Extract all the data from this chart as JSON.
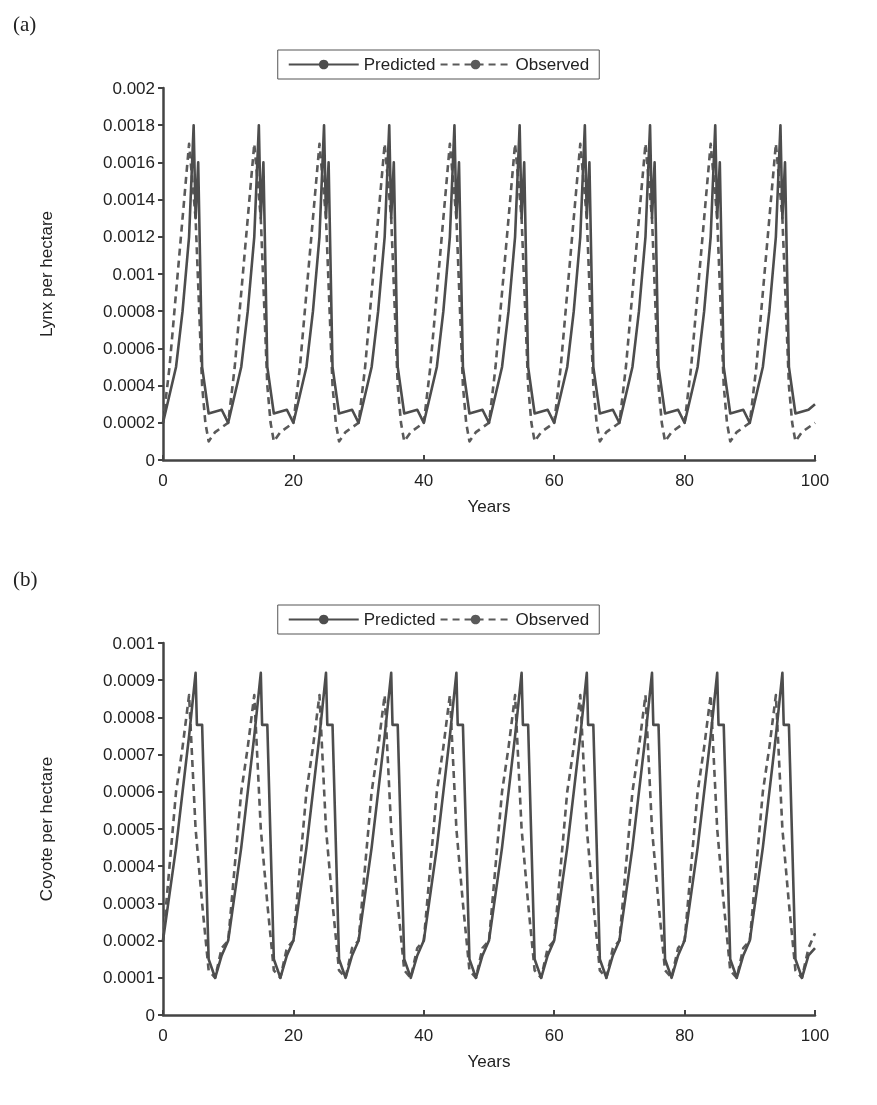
{
  "chart_data": [
    {
      "type": "line",
      "title": "(a)",
      "xlabel": "Years",
      "ylabel": "Lynx per hectare",
      "xlim": [
        0,
        100
      ],
      "xticks": [
        0,
        20,
        40,
        60,
        80,
        100
      ],
      "ylim": [
        0,
        0.002
      ],
      "yticks": [
        0,
        0.0002,
        0.0004,
        0.0006,
        0.0008,
        0.001,
        0.0012,
        0.0014,
        0.0016,
        0.0018,
        0.002
      ],
      "legend": "top",
      "grid": false,
      "marker": "none",
      "series": [
        {
          "name": "Predicted",
          "color": "#4d4d4d",
          "line_style": "solid",
          "x": [
            0,
            2,
            3,
            4,
            4.7,
            5,
            5.4,
            6,
            7,
            9,
            10,
            12,
            13,
            14,
            14.7,
            15,
            15.4,
            16,
            17,
            19,
            20,
            22,
            23,
            24,
            24.7,
            25,
            25.4,
            26,
            27,
            29,
            30,
            32,
            33,
            34,
            34.7,
            35,
            35.4,
            36,
            37,
            39,
            40,
            42,
            43,
            44,
            44.7,
            45,
            45.4,
            46,
            47,
            49,
            50,
            52,
            53,
            54,
            54.7,
            55,
            55.4,
            56,
            57,
            59,
            60,
            62,
            63,
            64,
            64.7,
            65,
            65.4,
            66,
            67,
            69,
            70,
            72,
            73,
            74,
            74.7,
            75,
            75.4,
            76,
            77,
            79,
            80,
            82,
            83,
            84,
            84.7,
            85,
            85.4,
            86,
            87,
            89,
            90,
            92,
            93,
            94,
            94.7,
            95,
            95.4,
            96,
            97,
            99,
            100
          ],
          "values": [
            0.0002,
            0.0005,
            0.0008,
            0.0012,
            0.0018,
            0.0013,
            0.0016,
            0.0005,
            0.00025,
            0.00027,
            0.0002,
            0.0005,
            0.0008,
            0.0012,
            0.0018,
            0.0013,
            0.0016,
            0.0005,
            0.00025,
            0.00027,
            0.0002,
            0.0005,
            0.0008,
            0.0012,
            0.0018,
            0.0013,
            0.0016,
            0.0005,
            0.00025,
            0.00027,
            0.0002,
            0.0005,
            0.0008,
            0.0012,
            0.0018,
            0.0013,
            0.0016,
            0.0005,
            0.00025,
            0.00027,
            0.0002,
            0.0005,
            0.0008,
            0.0012,
            0.0018,
            0.0013,
            0.0016,
            0.0005,
            0.00025,
            0.00027,
            0.0002,
            0.0005,
            0.0008,
            0.0012,
            0.0018,
            0.0013,
            0.0016,
            0.0005,
            0.00025,
            0.00027,
            0.0002,
            0.0005,
            0.0008,
            0.0012,
            0.0018,
            0.0013,
            0.0016,
            0.0005,
            0.00025,
            0.00027,
            0.0002,
            0.0005,
            0.0008,
            0.0012,
            0.0018,
            0.0013,
            0.0016,
            0.0005,
            0.00025,
            0.00027,
            0.0002,
            0.0005,
            0.0008,
            0.0012,
            0.0018,
            0.0013,
            0.0016,
            0.0005,
            0.00025,
            0.00027,
            0.0002,
            0.0005,
            0.0008,
            0.0012,
            0.0018,
            0.0013,
            0.0016,
            0.0005,
            0.00025,
            0.00027,
            0.0003
          ]
        },
        {
          "name": "Observed",
          "color": "#5a5a5a",
          "line_style": "dashed",
          "x": [
            0,
            1,
            2,
            3,
            4,
            5,
            6,
            6.5,
            7,
            8,
            10,
            11,
            12,
            13,
            14,
            15,
            16,
            16.5,
            17,
            18,
            20,
            21,
            22,
            23,
            24,
            25,
            26,
            26.5,
            27,
            28,
            30,
            31,
            32,
            33,
            34,
            35,
            36,
            36.5,
            37,
            38,
            40,
            41,
            42,
            43,
            44,
            45,
            46,
            46.5,
            47,
            48,
            50,
            51,
            52,
            53,
            54,
            55,
            56,
            56.5,
            57,
            58,
            60,
            61,
            62,
            63,
            64,
            65,
            66,
            66.5,
            67,
            68,
            70,
            71,
            72,
            73,
            74,
            75,
            76,
            76.5,
            77,
            78,
            80,
            81,
            82,
            83,
            84,
            85,
            86,
            86.5,
            87,
            88,
            90,
            91,
            92,
            93,
            94,
            95,
            96,
            96.5,
            97,
            98,
            100
          ],
          "values": [
            0.0002,
            0.0005,
            0.0009,
            0.0013,
            0.0017,
            0.0013,
            0.0004,
            0.0002,
            0.0001,
            0.00015,
            0.0002,
            0.0005,
            0.0009,
            0.0013,
            0.0017,
            0.0013,
            0.0004,
            0.0002,
            0.0001,
            0.00015,
            0.0002,
            0.0005,
            0.0009,
            0.0013,
            0.0017,
            0.0013,
            0.0004,
            0.0002,
            0.0001,
            0.00015,
            0.0002,
            0.0005,
            0.0009,
            0.0013,
            0.0017,
            0.0013,
            0.0004,
            0.0002,
            0.0001,
            0.00015,
            0.0002,
            0.0005,
            0.0009,
            0.0013,
            0.0017,
            0.0013,
            0.0004,
            0.0002,
            0.0001,
            0.00015,
            0.0002,
            0.0005,
            0.0009,
            0.0013,
            0.0017,
            0.0013,
            0.0004,
            0.0002,
            0.0001,
            0.00015,
            0.0002,
            0.0005,
            0.0009,
            0.0013,
            0.0017,
            0.0013,
            0.0004,
            0.0002,
            0.0001,
            0.00015,
            0.0002,
            0.0005,
            0.0009,
            0.0013,
            0.0017,
            0.0013,
            0.0004,
            0.0002,
            0.0001,
            0.00015,
            0.0002,
            0.0005,
            0.0009,
            0.0013,
            0.0017,
            0.0013,
            0.0004,
            0.0002,
            0.0001,
            0.00015,
            0.0002,
            0.0005,
            0.0009,
            0.0013,
            0.0017,
            0.0013,
            0.0004,
            0.0002,
            0.0001,
            0.00015,
            0.0002
          ]
        }
      ]
    },
    {
      "type": "line",
      "title": "(b)",
      "xlabel": "Years",
      "ylabel": "Coyote per hectare",
      "xlim": [
        0,
        100
      ],
      "xticks": [
        0,
        20,
        40,
        60,
        80,
        100
      ],
      "ylim": [
        0,
        0.001
      ],
      "yticks": [
        0,
        0.0001,
        0.0002,
        0.0003,
        0.0004,
        0.0005,
        0.0006,
        0.0007,
        0.0008,
        0.0009,
        0.001
      ],
      "legend": "top",
      "grid": false,
      "marker": "none",
      "series": [
        {
          "name": "Predicted",
          "color": "#4d4d4d",
          "line_style": "solid",
          "x": [
            0,
            2,
            3,
            4,
            5,
            5.2,
            6,
            7,
            8,
            9,
            10,
            12,
            13,
            14,
            15,
            15.2,
            16,
            17,
            18,
            19,
            20,
            22,
            23,
            24,
            25,
            25.2,
            26,
            27,
            28,
            29,
            30,
            32,
            33,
            34,
            35,
            35.2,
            36,
            37,
            38,
            39,
            40,
            42,
            43,
            44,
            45,
            45.2,
            46,
            47,
            48,
            49,
            50,
            52,
            53,
            54,
            55,
            55.2,
            56,
            57,
            58,
            59,
            60,
            62,
            63,
            64,
            65,
            65.2,
            66,
            67,
            68,
            69,
            70,
            72,
            73,
            74,
            75,
            75.2,
            76,
            77,
            78,
            79,
            80,
            82,
            83,
            84,
            85,
            85.2,
            86,
            87,
            88,
            89,
            90,
            92,
            93,
            94,
            95,
            95.2,
            96,
            97,
            98,
            99,
            100
          ],
          "values": [
            0.0002,
            0.00045,
            0.0006,
            0.00075,
            0.00092,
            0.00078,
            0.00078,
            0.00015,
            0.0001,
            0.00016,
            0.0002,
            0.00045,
            0.0006,
            0.00075,
            0.00092,
            0.00078,
            0.00078,
            0.00015,
            0.0001,
            0.00016,
            0.0002,
            0.00045,
            0.0006,
            0.00075,
            0.00092,
            0.00078,
            0.00078,
            0.00015,
            0.0001,
            0.00016,
            0.0002,
            0.00045,
            0.0006,
            0.00075,
            0.00092,
            0.00078,
            0.00078,
            0.00015,
            0.0001,
            0.00016,
            0.0002,
            0.00045,
            0.0006,
            0.00075,
            0.00092,
            0.00078,
            0.00078,
            0.00015,
            0.0001,
            0.00016,
            0.0002,
            0.00045,
            0.0006,
            0.00075,
            0.00092,
            0.00078,
            0.00078,
            0.00015,
            0.0001,
            0.00016,
            0.0002,
            0.00045,
            0.0006,
            0.00075,
            0.00092,
            0.00078,
            0.00078,
            0.00015,
            0.0001,
            0.00016,
            0.0002,
            0.00045,
            0.0006,
            0.00075,
            0.00092,
            0.00078,
            0.00078,
            0.00015,
            0.0001,
            0.00016,
            0.0002,
            0.00045,
            0.0006,
            0.00075,
            0.00092,
            0.00078,
            0.00078,
            0.00015,
            0.0001,
            0.00016,
            0.0002,
            0.00045,
            0.0006,
            0.00075,
            0.00092,
            0.00078,
            0.00078,
            0.00015,
            0.0001,
            0.00016,
            0.00018
          ]
        },
        {
          "name": "Observed",
          "color": "#5a5a5a",
          "line_style": "dashed",
          "x": [
            0,
            1,
            2,
            3,
            4,
            5,
            6,
            7,
            8,
            9,
            10,
            11,
            12,
            13,
            14,
            15,
            16,
            17,
            18,
            19,
            20,
            21,
            22,
            23,
            24,
            25,
            26,
            27,
            28,
            29,
            30,
            31,
            32,
            33,
            34,
            35,
            36,
            37,
            38,
            39,
            40,
            41,
            42,
            43,
            44,
            45,
            46,
            47,
            48,
            49,
            50,
            51,
            52,
            53,
            54,
            55,
            56,
            57,
            58,
            59,
            60,
            61,
            62,
            63,
            64,
            65,
            66,
            67,
            68,
            69,
            70,
            71,
            72,
            73,
            74,
            75,
            76,
            77,
            78,
            79,
            80,
            81,
            82,
            83,
            84,
            85,
            86,
            87,
            88,
            89,
            90,
            91,
            92,
            93,
            94,
            95,
            96,
            97,
            98,
            99,
            100
          ],
          "values": [
            0.0002,
            0.0004,
            0.0006,
            0.00072,
            0.00086,
            0.0005,
            0.0003,
            0.00012,
            0.0001,
            0.00018,
            0.0002,
            0.0004,
            0.0006,
            0.00072,
            0.00086,
            0.0005,
            0.0003,
            0.00012,
            0.0001,
            0.00018,
            0.0002,
            0.0004,
            0.0006,
            0.00072,
            0.00086,
            0.0005,
            0.0003,
            0.00012,
            0.0001,
            0.00018,
            0.0002,
            0.0004,
            0.0006,
            0.00072,
            0.00086,
            0.0005,
            0.0003,
            0.00012,
            0.0001,
            0.00018,
            0.0002,
            0.0004,
            0.0006,
            0.00072,
            0.00086,
            0.0005,
            0.0003,
            0.00012,
            0.0001,
            0.00018,
            0.0002,
            0.0004,
            0.0006,
            0.00072,
            0.00086,
            0.0005,
            0.0003,
            0.00012,
            0.0001,
            0.00018,
            0.0002,
            0.0004,
            0.0006,
            0.00072,
            0.00086,
            0.0005,
            0.0003,
            0.00012,
            0.0001,
            0.00018,
            0.0002,
            0.0004,
            0.0006,
            0.00072,
            0.00086,
            0.0005,
            0.0003,
            0.00012,
            0.0001,
            0.00018,
            0.0002,
            0.0004,
            0.0006,
            0.00072,
            0.00086,
            0.0005,
            0.0003,
            0.00012,
            0.0001,
            0.00018,
            0.0002,
            0.0004,
            0.0006,
            0.00072,
            0.00086,
            0.0005,
            0.0003,
            0.00012,
            0.0001,
            0.00018,
            0.00022
          ]
        }
      ]
    }
  ]
}
